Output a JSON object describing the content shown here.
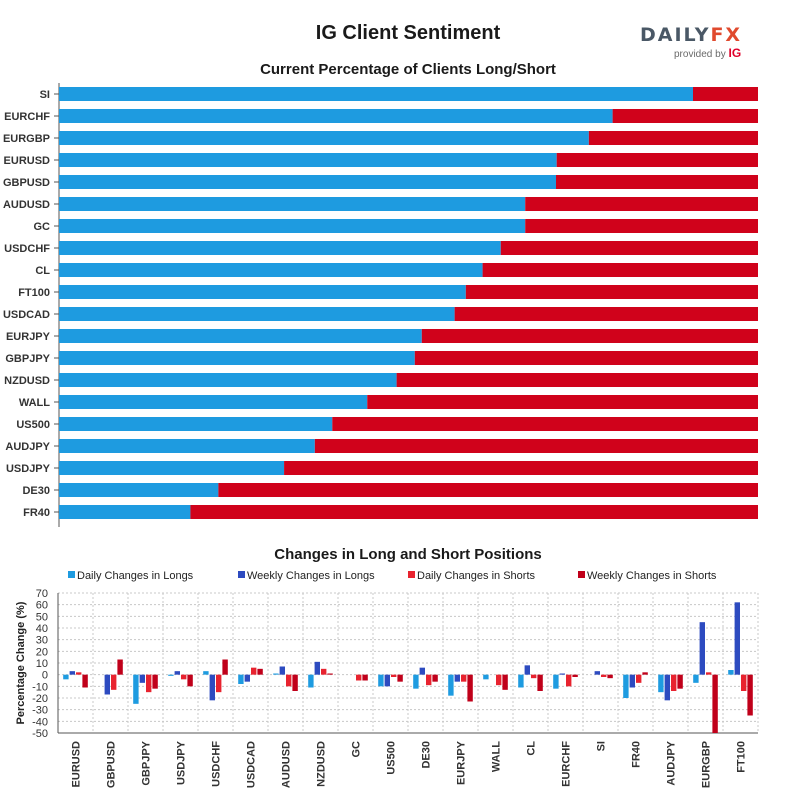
{
  "title": "IG Client Sentiment",
  "logo": {
    "word_main": "DAILY",
    "word_accent": "FX",
    "provided_by": "provided by",
    "brand": "IG"
  },
  "colors": {
    "long": "#1e9be0",
    "short": "#d0021b",
    "daily_long": "#1e9be0",
    "weekly_long": "#2d4bc0",
    "daily_short": "#e8232f",
    "weekly_short": "#c0001a"
  },
  "chart_data": [
    {
      "type": "bar",
      "orientation": "horizontal",
      "stacked": true,
      "title": "Current Percentage of Clients Long/Short",
      "categories": [
        "SI",
        "EURCHF",
        "EURGBP",
        "EURUSD",
        "GBPUSD",
        "AUDUSD",
        "GC",
        "USDCHF",
        "CL",
        "FT100",
        "USDCAD",
        "EURJPY",
        "GBPJPY",
        "NZDUSD",
        "WALL",
        "US500",
        "AUDJPY",
        "USDJPY",
        "DE30",
        "FR40"
      ],
      "series": [
        {
          "values": [
            90.7,
            79.2,
            75.8,
            71.2,
            71.1,
            66.7,
            66.7,
            63.2,
            60.6,
            58.2,
            56.6,
            51.9,
            50.9,
            48.3,
            44.1,
            39.1,
            36.6,
            32.2,
            22.8,
            18.8
          ]
        },
        {
          "values": [
            9.3,
            20.8,
            24.2,
            28.8,
            28.9,
            33.3,
            33.3,
            36.8,
            39.4,
            41.8,
            43.4,
            48.1,
            49.1,
            51.7,
            55.9,
            60.9,
            63.4,
            67.8,
            77.2,
            81.2
          ]
        }
      ],
      "xlim": [
        0,
        100
      ]
    },
    {
      "type": "bar",
      "title": "Changes in Long and Short Positions",
      "ylabel": "Percentage Change (%)",
      "ylim": [
        -50,
        70
      ],
      "yticks": [
        70,
        60,
        50,
        40,
        30,
        20,
        10,
        0,
        -10,
        -20,
        -30,
        -40,
        -50
      ],
      "categories": [
        "EURUSD",
        "GBPUSD",
        "GBPJPY",
        "USDJPY",
        "USDCHF",
        "USDCAD",
        "AUDUSD",
        "NZDUSD",
        "GC",
        "US500",
        "DE30",
        "EURJPY",
        "WALL",
        "CL",
        "EURCHF",
        "SI",
        "FR40",
        "AUDJPY",
        "EURGBP",
        "FT100"
      ],
      "series": [
        {
          "name": "Daily Changes in Longs",
          "values": [
            -4,
            0,
            -25,
            -1,
            3,
            -8,
            1,
            -11,
            0,
            -10,
            -12,
            -18,
            -4,
            -11,
            -12,
            0,
            -20,
            -15,
            -7,
            4
          ]
        },
        {
          "name": "Weekly Changes in Longs",
          "values": [
            3,
            -17,
            -7,
            3,
            -22,
            -6,
            7,
            11,
            0,
            -10,
            6,
            -6,
            0,
            8,
            1,
            3,
            -11,
            -22,
            45,
            62
          ]
        },
        {
          "name": "Daily Changes in Shorts",
          "values": [
            2,
            -13,
            -15,
            -4,
            -15,
            6,
            -10,
            5,
            -5,
            -2,
            -9,
            -6,
            -9,
            -3,
            -10,
            -2,
            -7,
            -14,
            2,
            -14
          ]
        },
        {
          "name": "Weekly Changes in Shorts",
          "values": [
            -11,
            13,
            -12,
            -10,
            13,
            5,
            -14,
            1,
            -5,
            -6,
            -6,
            -23,
            -13,
            -14,
            -2,
            -3,
            2,
            -12,
            -50,
            -35
          ]
        }
      ]
    }
  ]
}
